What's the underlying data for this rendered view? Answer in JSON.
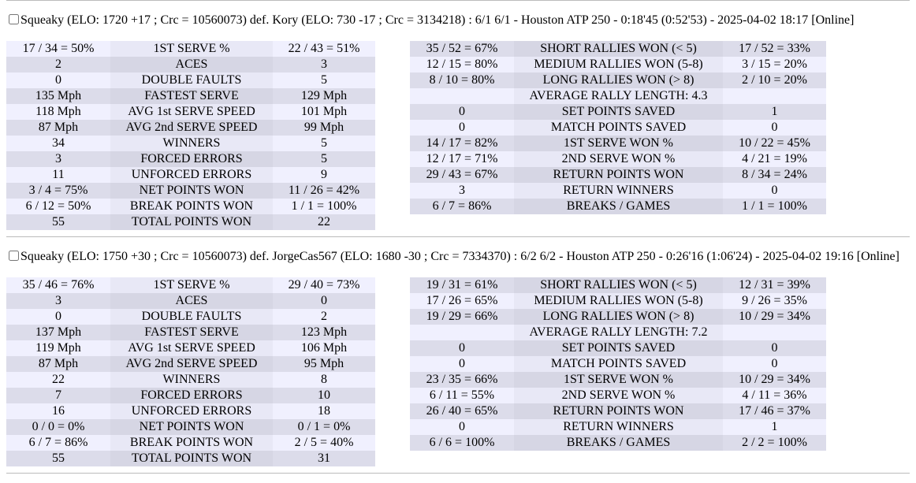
{
  "matches": [
    {
      "header": "Squeaky (ELO: 1720 +17 ; Crc = 10560073) def. Kory (ELO: 730 -17 ; Crc = 3134218) : 6/1 6/1 - Houston ATP 250 - 0:18'45 (0:52'53) - 2025-04-02 18:17 [Online]",
      "left": [
        [
          "17 / 34 = 50%",
          "1ST SERVE %",
          "22 / 43 = 51%"
        ],
        [
          "2",
          "ACES",
          "3"
        ],
        [
          "0",
          "DOUBLE FAULTS",
          "5"
        ],
        [
          "135 Mph",
          "FASTEST SERVE",
          "129 Mph"
        ],
        [
          "118 Mph",
          "AVG 1st SERVE SPEED",
          "101 Mph"
        ],
        [
          "87 Mph",
          "AVG 2nd SERVE SPEED",
          "99 Mph"
        ],
        [
          "34",
          "WINNERS",
          "5"
        ],
        [
          "3",
          "FORCED ERRORS",
          "5"
        ],
        [
          "11",
          "UNFORCED ERRORS",
          "9"
        ],
        [
          "3 / 4 = 75%",
          "NET POINTS WON",
          "11 / 26 = 42%"
        ],
        [
          "6 / 12 = 50%",
          "BREAK POINTS WON",
          "1 / 1 = 100%"
        ],
        [
          "55",
          "TOTAL POINTS WON",
          "22"
        ]
      ],
      "right": [
        [
          "35 / 52 = 67%",
          "SHORT RALLIES WON (< 5)",
          "17 / 52 = 33%"
        ],
        [
          "12 / 15 = 80%",
          "MEDIUM RALLIES WON (5-8)",
          "3 / 15 = 20%"
        ],
        [
          "8 / 10 = 80%",
          "LONG RALLIES WON (> 8)",
          "2 / 10 = 20%"
        ],
        [
          "",
          "AVERAGE RALLY LENGTH: 4.3",
          ""
        ],
        [
          "0",
          "SET POINTS SAVED",
          "1"
        ],
        [
          "0",
          "MATCH POINTS SAVED",
          "0"
        ],
        [
          "14 / 17 = 82%",
          "1ST SERVE WON %",
          "10 / 22 = 45%"
        ],
        [
          "12 / 17 = 71%",
          "2ND SERVE WON %",
          "4 / 21 = 19%"
        ],
        [
          "29 / 43 = 67%",
          "RETURN POINTS WON",
          "8 / 34 = 24%"
        ],
        [
          "3",
          "RETURN WINNERS",
          "0"
        ],
        [
          "6 / 7 = 86%",
          "BREAKS / GAMES",
          "1 / 1 = 100%"
        ]
      ]
    },
    {
      "header": "Squeaky (ELO: 1750 +30 ; Crc = 10560073) def. JorgeCas567 (ELO: 1680 -30 ; Crc = 7334370) : 6/2 6/2 - Houston ATP 250 - 0:26'16 (1:06'24) - 2025-04-02 19:16 [Online]",
      "left": [
        [
          "35 / 46 = 76%",
          "1ST SERVE %",
          "29 / 40 = 73%"
        ],
        [
          "3",
          "ACES",
          "0"
        ],
        [
          "0",
          "DOUBLE FAULTS",
          "2"
        ],
        [
          "137 Mph",
          "FASTEST SERVE",
          "123 Mph"
        ],
        [
          "119 Mph",
          "AVG 1st SERVE SPEED",
          "106 Mph"
        ],
        [
          "87 Mph",
          "AVG 2nd SERVE SPEED",
          "95 Mph"
        ],
        [
          "22",
          "WINNERS",
          "8"
        ],
        [
          "7",
          "FORCED ERRORS",
          "10"
        ],
        [
          "16",
          "UNFORCED ERRORS",
          "18"
        ],
        [
          "0 / 0 = 0%",
          "NET POINTS WON",
          "0 / 1 = 0%"
        ],
        [
          "6 / 7 = 86%",
          "BREAK POINTS WON",
          "2 / 5 = 40%"
        ],
        [
          "55",
          "TOTAL POINTS WON",
          "31"
        ]
      ],
      "right": [
        [
          "19 / 31 = 61%",
          "SHORT RALLIES WON (< 5)",
          "12 / 31 = 39%"
        ],
        [
          "17 / 26 = 65%",
          "MEDIUM RALLIES WON (5-8)",
          "9 / 26 = 35%"
        ],
        [
          "19 / 29 = 66%",
          "LONG RALLIES WON (> 8)",
          "10 / 29 = 34%"
        ],
        [
          "",
          "AVERAGE RALLY LENGTH: 7.2",
          ""
        ],
        [
          "0",
          "SET POINTS SAVED",
          "0"
        ],
        [
          "0",
          "MATCH POINTS SAVED",
          "0"
        ],
        [
          "23 / 35 = 66%",
          "1ST SERVE WON %",
          "10 / 29 = 34%"
        ],
        [
          "6 / 11 = 55%",
          "2ND SERVE WON %",
          "4 / 11 = 36%"
        ],
        [
          "26 / 40 = 65%",
          "RETURN POINTS WON",
          "17 / 46 = 37%"
        ],
        [
          "0",
          "RETURN WINNERS",
          "1"
        ],
        [
          "6 / 6 = 100%",
          "BREAKS / GAMES",
          "2 / 2 = 100%"
        ]
      ]
    }
  ]
}
